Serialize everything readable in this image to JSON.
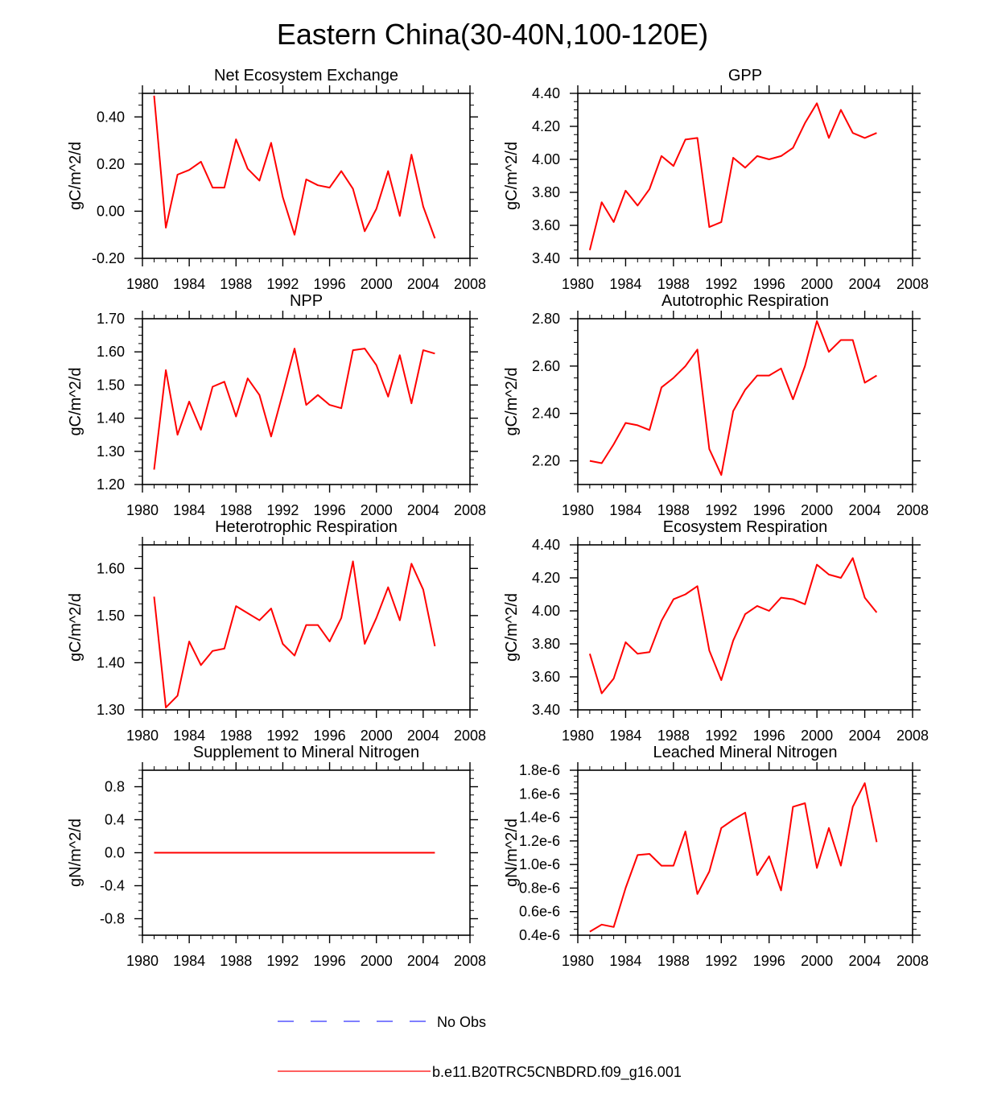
{
  "figure": {
    "title": "Eastern China(30-40N,100-120E)",
    "line_color": "#ff0000",
    "obs_color": "#3333ff",
    "legend": [
      {
        "label": "No Obs",
        "style": "dashed",
        "color": "#3333ff"
      },
      {
        "label": "b.e11.B20TRC5CNBDRD.f09_g16.001",
        "style": "solid",
        "color": "#ff0000"
      }
    ]
  },
  "chart_data": [
    {
      "type": "line",
      "title": "Net Ecosystem Exchange",
      "ylabel": "gC/m^2/d",
      "xlim": [
        1980,
        2008
      ],
      "ylim": [
        -0.2,
        0.5
      ],
      "xticks": [
        1980,
        1984,
        1988,
        1992,
        1996,
        2000,
        2004,
        2008
      ],
      "yticks": [
        -0.2,
        0.0,
        0.2,
        0.4
      ],
      "ytick_labels": [
        "-0.20",
        "0.00",
        "0.20",
        "0.40"
      ],
      "x": [
        1981,
        1982,
        1983,
        1984,
        1985,
        1986,
        1987,
        1988,
        1989,
        1990,
        1991,
        1992,
        1993,
        1994,
        1995,
        1996,
        1997,
        1998,
        1999,
        2000,
        2001,
        2002,
        2003,
        2004,
        2005
      ],
      "series": [
        {
          "name": "b.e11.B20TRC5CNBDRD.f09_g16.001",
          "values": [
            0.49,
            -0.07,
            0.155,
            0.175,
            0.21,
            0.1,
            0.1,
            0.305,
            0.18,
            0.13,
            0.29,
            0.06,
            -0.1,
            0.135,
            0.11,
            0.1,
            0.17,
            0.095,
            -0.085,
            0.01,
            0.17,
            -0.02,
            0.24,
            0.02,
            -0.115
          ]
        }
      ]
    },
    {
      "type": "line",
      "title": "GPP",
      "ylabel": "gC/m^2/d",
      "xlim": [
        1980,
        2008
      ],
      "ylim": [
        3.4,
        4.4
      ],
      "xticks": [
        1980,
        1984,
        1988,
        1992,
        1996,
        2000,
        2004,
        2008
      ],
      "yticks": [
        3.4,
        3.6,
        3.8,
        4.0,
        4.2,
        4.4
      ],
      "ytick_labels": [
        "3.40",
        "3.60",
        "3.80",
        "4.00",
        "4.20",
        "4.40"
      ],
      "x": [
        1981,
        1982,
        1983,
        1984,
        1985,
        1986,
        1987,
        1988,
        1989,
        1990,
        1991,
        1992,
        1993,
        1994,
        1995,
        1996,
        1997,
        1998,
        1999,
        2000,
        2001,
        2002,
        2003,
        2004,
        2005
      ],
      "series": [
        {
          "name": "b.e11.B20TRC5CNBDRD.f09_g16.001",
          "values": [
            3.45,
            3.74,
            3.62,
            3.81,
            3.72,
            3.82,
            4.02,
            3.96,
            4.12,
            4.13,
            3.59,
            3.62,
            4.01,
            3.95,
            4.02,
            4.0,
            4.02,
            4.07,
            4.22,
            4.34,
            4.13,
            4.3,
            4.16,
            4.13,
            4.16
          ]
        }
      ]
    },
    {
      "type": "line",
      "title": "NPP",
      "ylabel": "gC/m^2/d",
      "xlim": [
        1980,
        2008
      ],
      "ylim": [
        1.2,
        1.7
      ],
      "xticks": [
        1980,
        1984,
        1988,
        1992,
        1996,
        2000,
        2004,
        2008
      ],
      "yticks": [
        1.2,
        1.3,
        1.4,
        1.5,
        1.6,
        1.7
      ],
      "ytick_labels": [
        "1.20",
        "1.30",
        "1.40",
        "1.50",
        "1.60",
        "1.70"
      ],
      "x": [
        1981,
        1982,
        1983,
        1984,
        1985,
        1986,
        1987,
        1988,
        1989,
        1990,
        1991,
        1992,
        1993,
        1994,
        1995,
        1996,
        1997,
        1998,
        1999,
        2000,
        2001,
        2002,
        2003,
        2004,
        2005
      ],
      "series": [
        {
          "name": "b.e11.B20TRC5CNBDRD.f09_g16.001",
          "values": [
            1.245,
            1.545,
            1.35,
            1.45,
            1.365,
            1.495,
            1.51,
            1.405,
            1.52,
            1.47,
            1.345,
            1.475,
            1.61,
            1.44,
            1.47,
            1.44,
            1.43,
            1.605,
            1.61,
            1.56,
            1.465,
            1.59,
            1.445,
            1.605,
            1.595
          ]
        }
      ]
    },
    {
      "type": "line",
      "title": "Autotrophic Respiration",
      "ylabel": "gC/m^2/d",
      "xlim": [
        1980,
        2008
      ],
      "ylim": [
        2.1,
        2.8
      ],
      "xticks": [
        1980,
        1984,
        1988,
        1992,
        1996,
        2000,
        2004,
        2008
      ],
      "yticks": [
        2.2,
        2.4,
        2.6,
        2.8
      ],
      "ytick_labels": [
        "2.20",
        "2.40",
        "2.60",
        "2.80"
      ],
      "x": [
        1981,
        1982,
        1983,
        1984,
        1985,
        1986,
        1987,
        1988,
        1989,
        1990,
        1991,
        1992,
        1993,
        1994,
        1995,
        1996,
        1997,
        1998,
        1999,
        2000,
        2001,
        2002,
        2003,
        2004,
        2005
      ],
      "series": [
        {
          "name": "b.e11.B20TRC5CNBDRD.f09_g16.001",
          "values": [
            2.2,
            2.19,
            2.27,
            2.36,
            2.35,
            2.33,
            2.51,
            2.55,
            2.6,
            2.67,
            2.25,
            2.14,
            2.41,
            2.5,
            2.56,
            2.56,
            2.59,
            2.46,
            2.6,
            2.79,
            2.66,
            2.71,
            2.71,
            2.53,
            2.56
          ]
        }
      ]
    },
    {
      "type": "line",
      "title": "Heterotrophic Respiration",
      "ylabel": "gC/m^2/d",
      "xlim": [
        1980,
        2008
      ],
      "ylim": [
        1.3,
        1.65
      ],
      "xticks": [
        1980,
        1984,
        1988,
        1992,
        1996,
        2000,
        2004,
        2008
      ],
      "yticks": [
        1.3,
        1.4,
        1.5,
        1.6
      ],
      "ytick_labels": [
        "1.30",
        "1.40",
        "1.50",
        "1.60"
      ],
      "x": [
        1981,
        1982,
        1983,
        1984,
        1985,
        1986,
        1987,
        1988,
        1989,
        1990,
        1991,
        1992,
        1993,
        1994,
        1995,
        1996,
        1997,
        1998,
        1999,
        2000,
        2001,
        2002,
        2003,
        2004,
        2005
      ],
      "series": [
        {
          "name": "b.e11.B20TRC5CNBDRD.f09_g16.001",
          "values": [
            1.54,
            1.305,
            1.33,
            1.445,
            1.395,
            1.425,
            1.43,
            1.52,
            1.505,
            1.49,
            1.515,
            1.44,
            1.415,
            1.48,
            1.48,
            1.445,
            1.495,
            1.615,
            1.44,
            1.495,
            1.56,
            1.49,
            1.61,
            1.555,
            1.435
          ]
        }
      ]
    },
    {
      "type": "line",
      "title": "Ecosystem Respiration",
      "ylabel": "gC/m^2/d",
      "xlim": [
        1980,
        2008
      ],
      "ylim": [
        3.4,
        4.4
      ],
      "xticks": [
        1980,
        1984,
        1988,
        1992,
        1996,
        2000,
        2004,
        2008
      ],
      "yticks": [
        3.4,
        3.6,
        3.8,
        4.0,
        4.2,
        4.4
      ],
      "ytick_labels": [
        "3.40",
        "3.60",
        "3.80",
        "4.00",
        "4.20",
        "4.40"
      ],
      "x": [
        1981,
        1982,
        1983,
        1984,
        1985,
        1986,
        1987,
        1988,
        1989,
        1990,
        1991,
        1992,
        1993,
        1994,
        1995,
        1996,
        1997,
        1998,
        1999,
        2000,
        2001,
        2002,
        2003,
        2004,
        2005
      ],
      "series": [
        {
          "name": "b.e11.B20TRC5CNBDRD.f09_g16.001",
          "values": [
            3.74,
            3.5,
            3.59,
            3.81,
            3.74,
            3.75,
            3.94,
            4.07,
            4.1,
            4.15,
            3.76,
            3.58,
            3.82,
            3.98,
            4.03,
            4.0,
            4.08,
            4.07,
            4.04,
            4.28,
            4.22,
            4.2,
            4.32,
            4.08,
            3.99
          ]
        }
      ]
    },
    {
      "type": "line",
      "title": "Supplement to Mineral Nitrogen",
      "ylabel": "gN/m^2/d",
      "xlim": [
        1980,
        2008
      ],
      "ylim": [
        -1.0,
        1.0
      ],
      "xticks": [
        1980,
        1984,
        1988,
        1992,
        1996,
        2000,
        2004,
        2008
      ],
      "yticks": [
        -0.8,
        -0.4,
        0.0,
        0.4,
        0.8
      ],
      "ytick_labels": [
        "-0.8",
        "-0.4",
        "0.0",
        "0.4",
        "0.8"
      ],
      "x": [
        1981,
        1982,
        1983,
        1984,
        1985,
        1986,
        1987,
        1988,
        1989,
        1990,
        1991,
        1992,
        1993,
        1994,
        1995,
        1996,
        1997,
        1998,
        1999,
        2000,
        2001,
        2002,
        2003,
        2004,
        2005
      ],
      "series": [
        {
          "name": "b.e11.B20TRC5CNBDRD.f09_g16.001",
          "values": [
            0,
            0,
            0,
            0,
            0,
            0,
            0,
            0,
            0,
            0,
            0,
            0,
            0,
            0,
            0,
            0,
            0,
            0,
            0,
            0,
            0,
            0,
            0,
            0,
            0
          ]
        }
      ]
    },
    {
      "type": "line",
      "title": "Leached Mineral Nitrogen",
      "ylabel": "gN/m^2/d",
      "xlim": [
        1980,
        2008
      ],
      "ylim": [
        4e-07,
        1.8e-06
      ],
      "xticks": [
        1980,
        1984,
        1988,
        1992,
        1996,
        2000,
        2004,
        2008
      ],
      "yticks": [
        4e-07,
        6e-07,
        8e-07,
        1e-06,
        1.2e-06,
        1.4e-06,
        1.6e-06,
        1.8e-06
      ],
      "ytick_labels": [
        "0.4e-6",
        "0.6e-6",
        "0.8e-6",
        "1.0e-6",
        "1.2e-6",
        "1.4e-6",
        "1.6e-6",
        "1.8e-6"
      ],
      "x": [
        1981,
        1982,
        1983,
        1984,
        1985,
        1986,
        1987,
        1988,
        1989,
        1990,
        1991,
        1992,
        1993,
        1994,
        1995,
        1996,
        1997,
        1998,
        1999,
        2000,
        2001,
        2002,
        2003,
        2004,
        2005
      ],
      "series": [
        {
          "name": "b.e11.B20TRC5CNBDRD.f09_g16.001",
          "values": [
            4.3e-07,
            4.9e-07,
            4.7e-07,
            8e-07,
            1.08e-06,
            1.09e-06,
            9.9e-07,
            9.9e-07,
            1.28e-06,
            7.5e-07,
            9.4e-07,
            1.31e-06,
            1.38e-06,
            1.44e-06,
            9.1e-07,
            1.07e-06,
            7.8e-07,
            1.49e-06,
            1.52e-06,
            9.7e-07,
            1.31e-06,
            9.9e-07,
            1.49e-06,
            1.69e-06,
            1.19e-06
          ]
        }
      ]
    }
  ]
}
